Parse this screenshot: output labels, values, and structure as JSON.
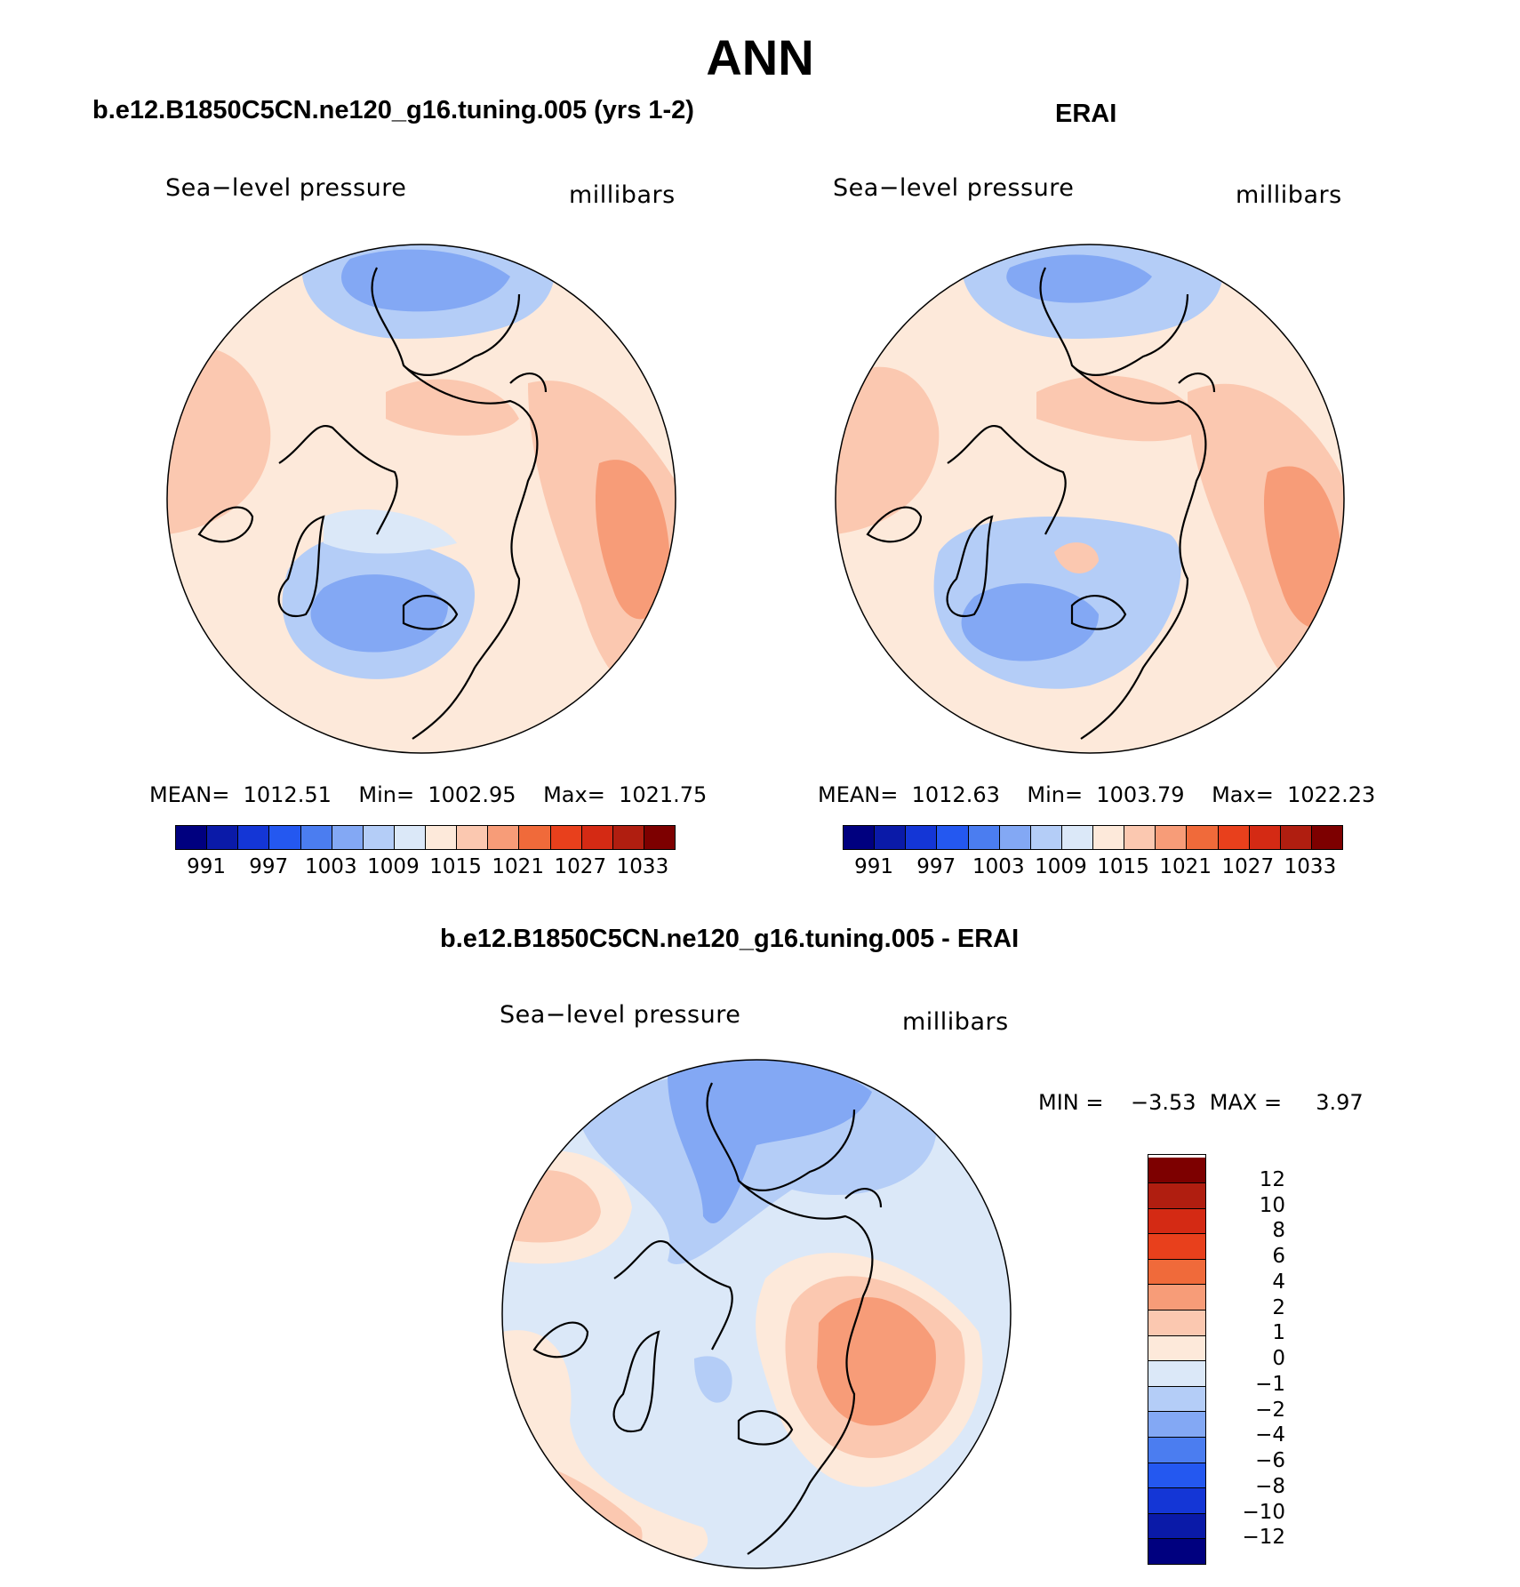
{
  "title": "ANN",
  "panels": {
    "model": {
      "title": "b.e12.B1850C5CN.ne120_g16.tuning.005 (yrs 1-2)",
      "variable": "Sea−level pressure",
      "units": "millibars",
      "stats": "MEAN=  1012.51    Min=  1002.95    Max=  1021.75"
    },
    "obs": {
      "title": "ERAI",
      "variable": "Sea−level pressure",
      "units": "millibars",
      "stats": "MEAN=  1012.63    Min=  1003.79    Max=  1022.23"
    },
    "diff": {
      "title": "b.e12.B1850C5CN.ne120_g16.tuning.005 - ERAI",
      "variable": "Sea−level pressure",
      "units": "millibars",
      "stats": "MIN =    −3.53  MAX =     3.97"
    }
  },
  "abs_colorbar": {
    "colors": [
      "#00007f",
      "#0a1aa8",
      "#1436d6",
      "#2458f0",
      "#4b7df0",
      "#83a8f4",
      "#b4cdf7",
      "#dbe8f8",
      "#fde9da",
      "#fbc8b0",
      "#f79c78",
      "#f06a3a",
      "#e8401c",
      "#d42a14",
      "#b01e10",
      "#7d0000"
    ],
    "ticks": [
      "991",
      "997",
      "1003",
      "1009",
      "1015",
      "1021",
      "1027",
      "1033"
    ]
  },
  "diff_colorbar": {
    "colors": [
      "#00007f",
      "#0a1aa8",
      "#1436d6",
      "#2458f0",
      "#4b7df0",
      "#83a8f4",
      "#b4cdf7",
      "#dbe8f8",
      "#fde9da",
      "#fbc8b0",
      "#f79c78",
      "#f06a3a",
      "#e8401c",
      "#d42a14",
      "#b01e10",
      "#7d0000"
    ],
    "ticks": [
      "−12",
      "−10",
      "−8",
      "−6",
      "−4",
      "−2",
      "−1",
      "0",
      "1",
      "2",
      "4",
      "6",
      "8",
      "10",
      "12"
    ]
  }
}
